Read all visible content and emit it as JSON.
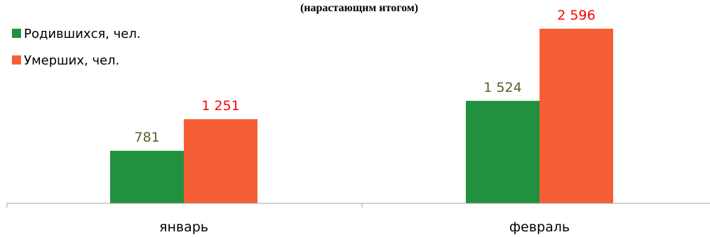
{
  "chart_data": {
    "type": "bar",
    "title": "(нарастающим итогом)",
    "categories": [
      "январь",
      "февраль"
    ],
    "series": [
      {
        "name": "Родившихся, чел.",
        "values": [
          781,
          1524
        ],
        "labels": [
          "781",
          "1 524"
        ],
        "color": "#21913F",
        "label_color": "#4F6228"
      },
      {
        "name": "Умерших, чел.",
        "values": [
          1251,
          2596
        ],
        "labels": [
          "1 251",
          "2 596"
        ],
        "color": "#F65F36",
        "label_color": "#FF0000"
      }
    ],
    "ylim": [
      0,
      2960
    ],
    "grid": false,
    "legend_position": "top-left",
    "xlabel": "",
    "ylabel": ""
  }
}
